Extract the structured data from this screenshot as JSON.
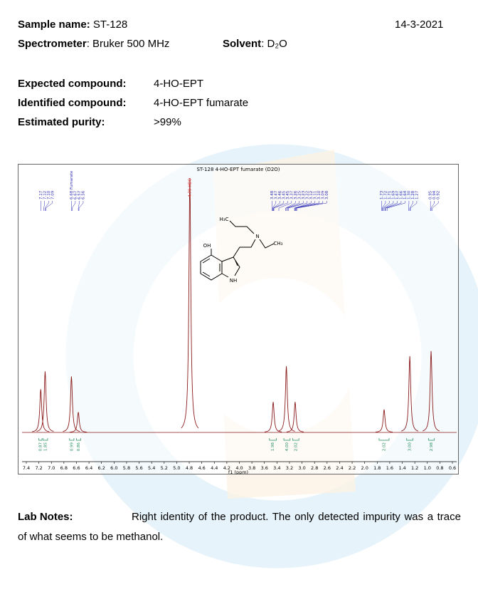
{
  "header": {
    "sample_label": "Sample name:",
    "sample": "ST-128",
    "date": "14-3-2021",
    "spectrometer_label": "Spectrometer",
    "spectrometer": ": Bruker 500 MHz",
    "solvent_label": "Solvent",
    "solvent": ": D₂O"
  },
  "compounds": {
    "expected_label": "Expected compound:",
    "expected": "4-HO-EPT",
    "identified_label": "Identified compound:",
    "identified": "4-HO-EPT fumarate",
    "purity_label": "Estimated purity:",
    "purity": ">99%"
  },
  "chart_data": {
    "type": "spectrum",
    "title": "ST-128 4-HO-EPT fumarate (D2O)",
    "x_label": "f1 (ppm)",
    "color": "#8b1a1a",
    "label_color": "#2b2bb5",
    "integral_color": "#1e8c5a",
    "xlim": [
      7.4,
      0.6
    ],
    "xticks": [
      7.4,
      7.2,
      {
        "value": 7,
        "label": "7.0"
      },
      6.8,
      6.6,
      6.4,
      6.2,
      {
        "value": 6,
        "label": "6.0"
      },
      5.8,
      5.6,
      5.4,
      5.2,
      {
        "value": 5,
        "label": "5.0"
      },
      4.8,
      4.6,
      4.4,
      4.2,
      {
        "value": 4,
        "label": "4.0"
      },
      3.8,
      3.6,
      3.4,
      3.2,
      {
        "value": 3,
        "label": "3.0"
      },
      2.8,
      2.6,
      2.4,
      2.2,
      {
        "value": 2,
        "label": "2.0"
      },
      1.8,
      1.6,
      1.4,
      1.2,
      {
        "value": 1,
        "label": "1.0"
      },
      0.8,
      0.6
    ],
    "ylim": [
      0,
      100
    ],
    "peaks": [
      {
        "ppm": 7.17,
        "height": 17
      },
      {
        "ppm": 7.1,
        "height": 24
      },
      {
        "ppm": 6.68,
        "height": 22
      },
      {
        "ppm": 6.57,
        "height": 8
      },
      {
        "ppm": 4.79,
        "height": 100
      },
      {
        "ppm": 3.46,
        "height": 12
      },
      {
        "ppm": 3.25,
        "height": 26
      },
      {
        "ppm": 3.11,
        "height": 12
      },
      {
        "ppm": 1.69,
        "height": 9
      },
      {
        "ppm": 1.28,
        "height": 30
      },
      {
        "ppm": 0.94,
        "height": 32
      }
    ],
    "peak_labels": [
      7.17,
      7.12,
      7.1,
      7.09,
      {
        "value": 6.68,
        "label": "6.68 Fumarate"
      },
      6.67,
      6.57,
      6.56,
      3.48,
      3.47,
      3.46,
      3.45,
      3.45,
      3.37,
      3.26,
      3.25,
      3.23,
      3.22,
      3.12,
      3.11,
      3.1,
      3.09,
      3.08,
      1.73,
      1.72,
      1.71,
      1.69,
      1.67,
      1.66,
      1.64,
      1.3,
      1.28,
      1.27,
      0.95,
      0.94,
      0.92
    ],
    "peak_label_texts": [
      "7.17",
      "7.12",
      "7.10",
      "7.09",
      "6.68 Fumarate",
      "6.67",
      "6.57",
      "6.56",
      "3.48",
      "3.47",
      "3.46",
      "3.45",
      "3.45",
      "3.37",
      "3.26",
      "3.25",
      "3.23",
      "3.22",
      "3.12",
      "3.11",
      "3.10",
      "3.09",
      "3.08",
      "1.73",
      "1.72",
      "1.71",
      "1.69",
      "1.67",
      "1.66",
      "1.64",
      "1.30",
      "1.28",
      "1.27",
      "0.95",
      "0.94",
      "0.92"
    ],
    "solvent_peak_label": "4.79 HDO",
    "integrals": [
      {
        "value": 0.87,
        "ppm": [
          7.2,
          7.15
        ]
      },
      {
        "value": 1.85,
        "ppm": [
          7.13,
          7.06
        ]
      },
      {
        "value": 0.99,
        "ppm": [
          6.71,
          6.64
        ]
      },
      {
        "value": 0.86,
        "ppm": [
          6.6,
          6.53
        ]
      },
      {
        "value": 1.98,
        "ppm": [
          3.52,
          3.41
        ]
      },
      {
        "value": 4.0,
        "ppm": [
          3.29,
          3.19
        ]
      },
      {
        "value": 2.02,
        "ppm": [
          3.15,
          3.05
        ]
      },
      {
        "value": 2.02,
        "ppm": [
          1.77,
          1.61
        ]
      },
      {
        "value": 3.0,
        "ppm": [
          1.33,
          1.23
        ]
      },
      {
        "value": 2.98,
        "ppm": [
          0.98,
          0.89
        ]
      }
    ],
    "integral_texts": [
      "0.87",
      "1.85",
      "0.99",
      "0.86",
      "1.98",
      "4.00",
      "2.02",
      "2.02",
      "3.00",
      "2.98"
    ],
    "structure_labels": [
      "H₃C",
      "N",
      "CH₃",
      "OH",
      "NH"
    ]
  },
  "notes": {
    "label": "Lab Notes:",
    "text": "Right identity of the product. The only detected impurity was a trace of what seems to be methanol."
  }
}
